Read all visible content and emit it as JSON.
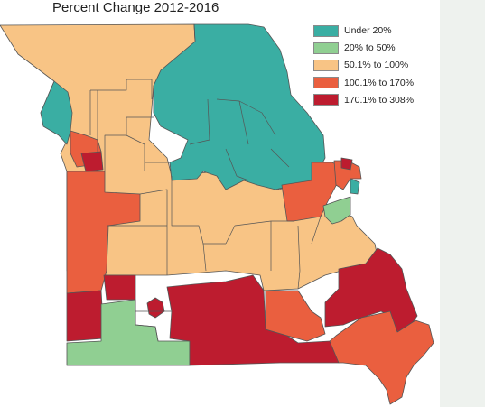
{
  "title": "Percent Change 2012-2016",
  "colors": {
    "under_20": "#3aaea3",
    "p20_50": "#90cf92",
    "p50_100": "#f8c485",
    "p100_170": "#ea5f3f",
    "p170_308": "#bd1c2f",
    "border": "#555555",
    "side_panel": "#eef2ee"
  },
  "legend": {
    "items": [
      {
        "label": "Under 20%",
        "color": "#3aaea3"
      },
      {
        "label": "20% to 50%",
        "color": "#90cf92"
      },
      {
        "label": "50.1% to 100%",
        "color": "#f8c485"
      },
      {
        "label": "100.1% to 170%",
        "color": "#ea5f3f"
      },
      {
        "label": "170.1% to 308%",
        "color": "#bd1c2f"
      }
    ]
  }
}
